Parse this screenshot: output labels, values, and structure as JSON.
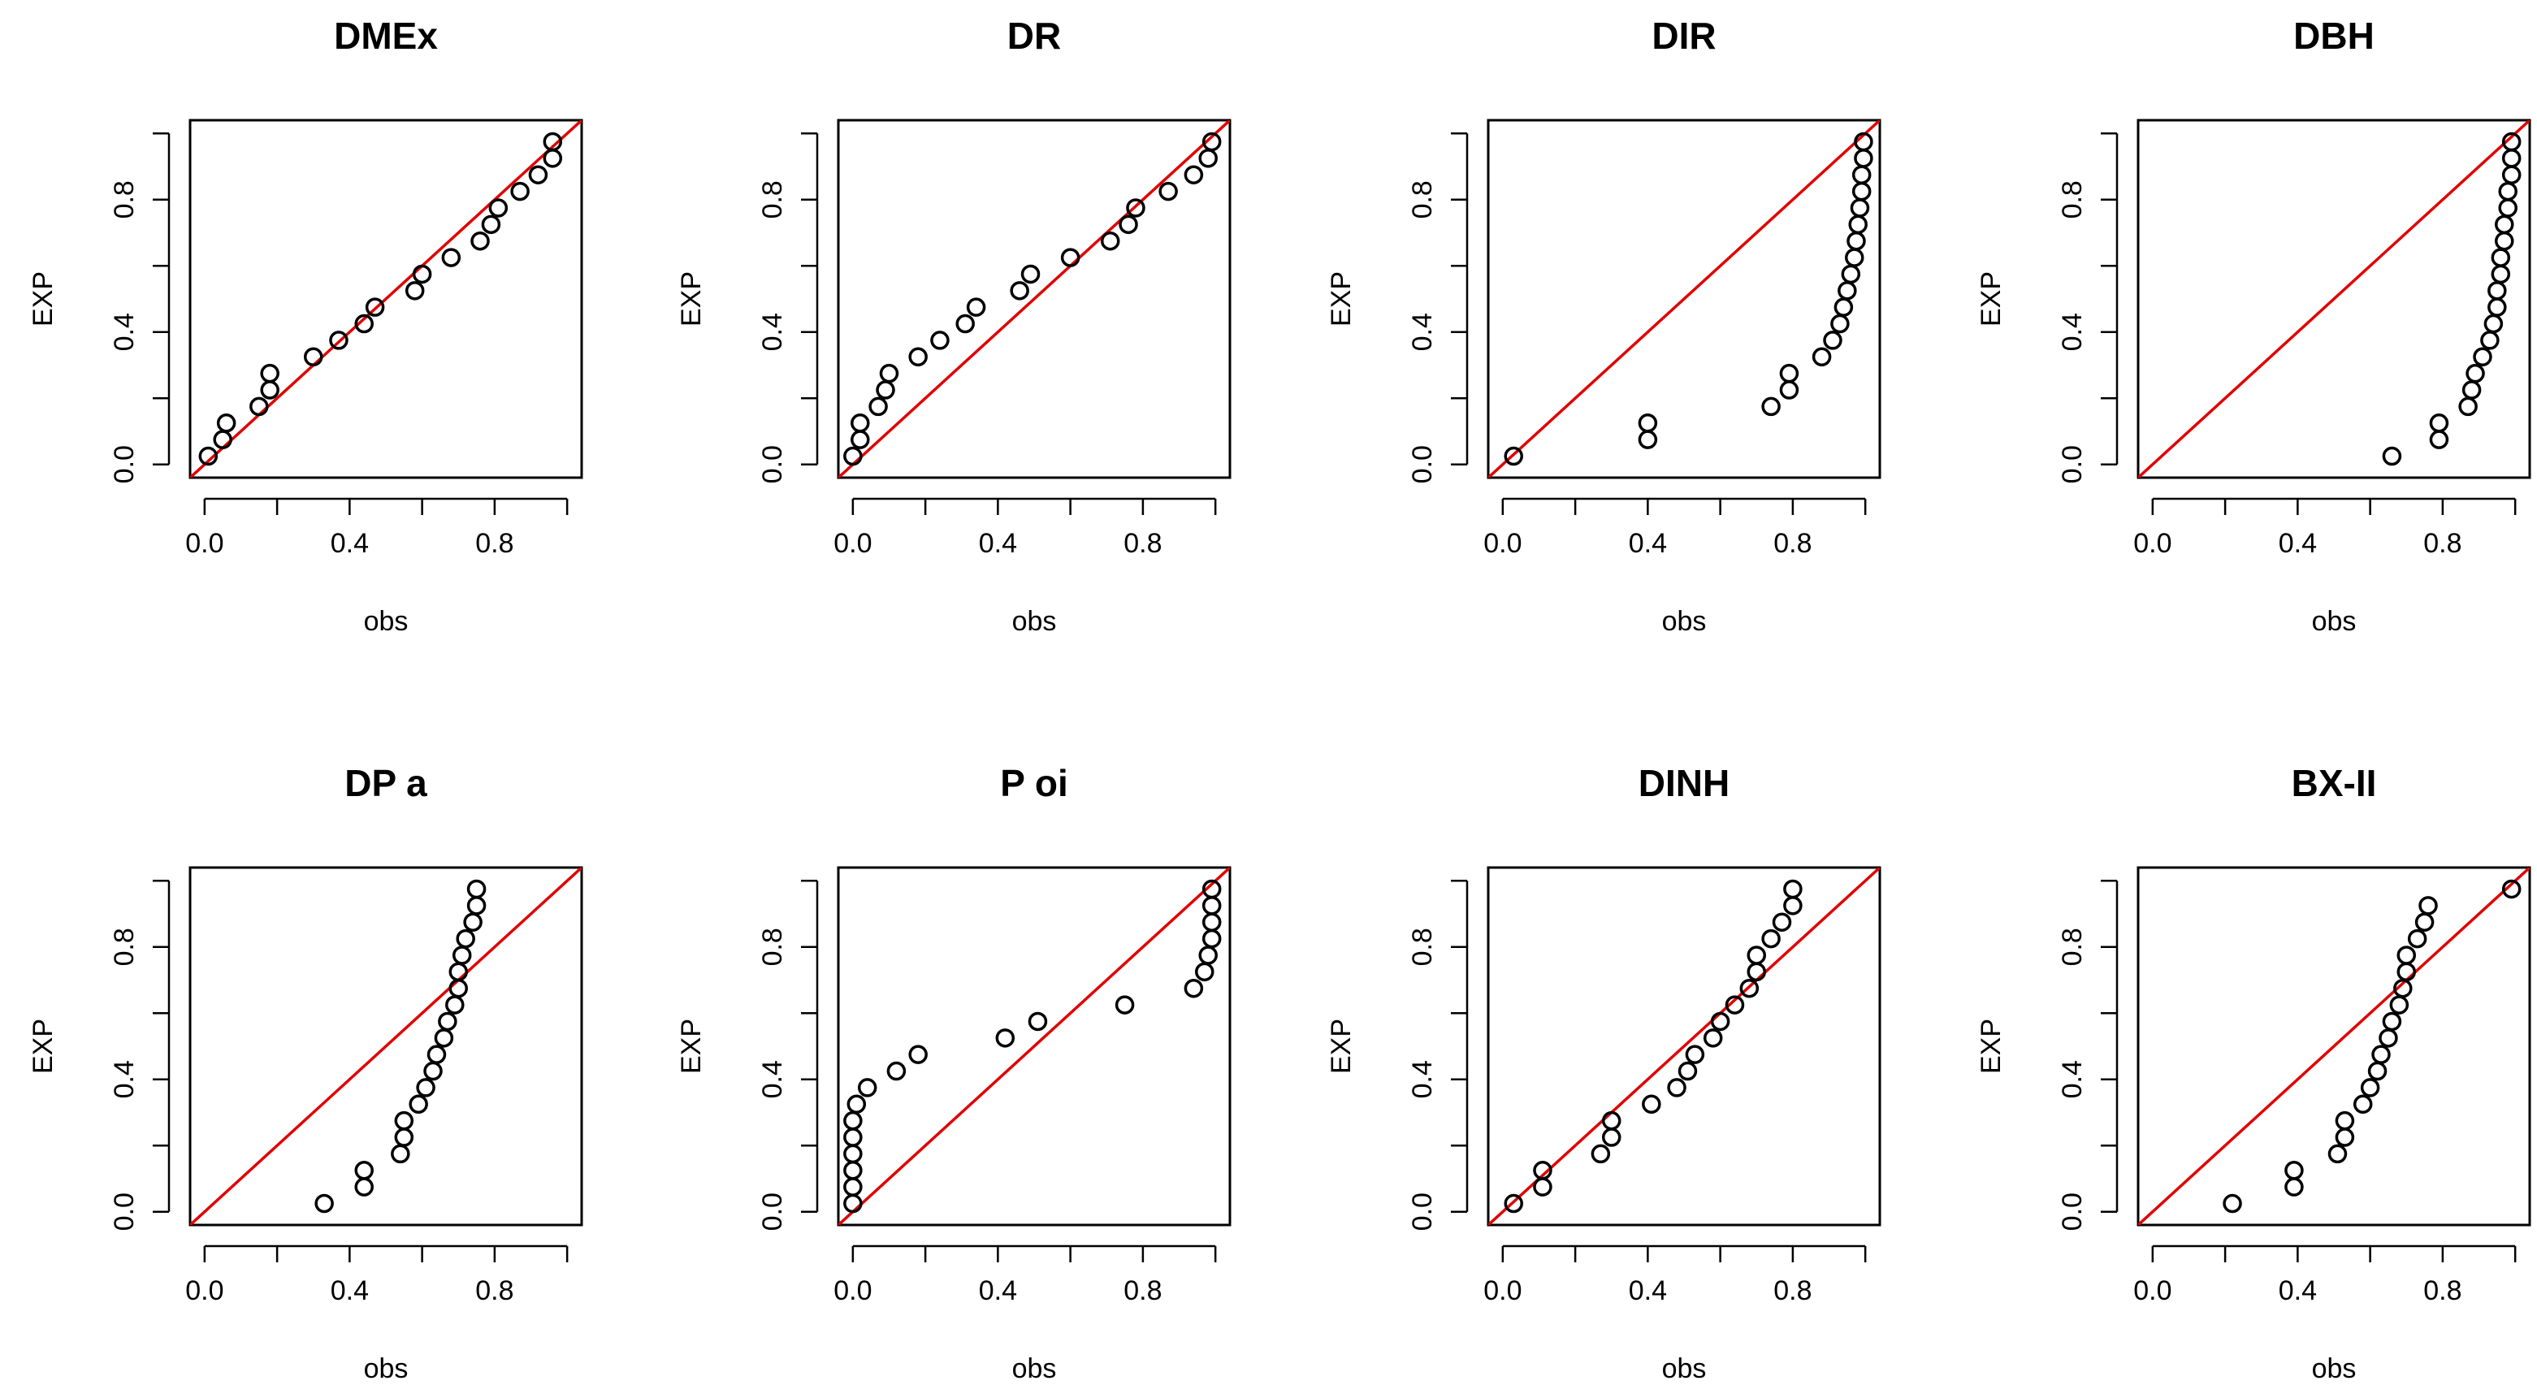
{
  "figure": {
    "background": "#ffffff"
  },
  "chart_data": [
    {
      "type": "scatter",
      "title": "DMEx",
      "xlabel": "obs",
      "ylabel": "EXP",
      "xlim": [
        0,
        1
      ],
      "ylim": [
        0,
        1
      ],
      "xticks": [
        "0.0",
        "0.4",
        "0.8"
      ],
      "yticks": [
        "0.0",
        "0.4",
        "0.8"
      ],
      "reference_line": {
        "slope": 1,
        "intercept": 0,
        "color": "#e00000"
      },
      "points": {
        "x": [
          0.01,
          0.05,
          0.06,
          0.15,
          0.18,
          0.18,
          0.3,
          0.37,
          0.44,
          0.47,
          0.58,
          0.6,
          0.68,
          0.76,
          0.79,
          0.81,
          0.87,
          0.92,
          0.96,
          0.96
        ],
        "y": [
          0.025,
          0.075,
          0.125,
          0.175,
          0.225,
          0.275,
          0.325,
          0.375,
          0.425,
          0.475,
          0.525,
          0.575,
          0.625,
          0.675,
          0.725,
          0.775,
          0.825,
          0.875,
          0.925,
          0.975
        ]
      }
    },
    {
      "type": "scatter",
      "title": "DR",
      "xlabel": "obs",
      "ylabel": "EXP",
      "xlim": [
        0,
        1
      ],
      "ylim": [
        0,
        1
      ],
      "xticks": [
        "0.0",
        "0.4",
        "0.8"
      ],
      "yticks": [
        "0.0",
        "0.4",
        "0.8"
      ],
      "reference_line": {
        "slope": 1,
        "intercept": 0,
        "color": "#e00000"
      },
      "points": {
        "x": [
          0.0,
          0.02,
          0.02,
          0.07,
          0.09,
          0.1,
          0.18,
          0.24,
          0.31,
          0.34,
          0.46,
          0.49,
          0.6,
          0.71,
          0.76,
          0.78,
          0.87,
          0.94,
          0.98,
          0.99
        ],
        "y": [
          0.025,
          0.075,
          0.125,
          0.175,
          0.225,
          0.275,
          0.325,
          0.375,
          0.425,
          0.475,
          0.525,
          0.575,
          0.625,
          0.675,
          0.725,
          0.775,
          0.825,
          0.875,
          0.925,
          0.975
        ]
      }
    },
    {
      "type": "scatter",
      "title": "DIR",
      "xlabel": "obs",
      "ylabel": "EXP",
      "xlim": [
        0,
        1
      ],
      "ylim": [
        0,
        1
      ],
      "xticks": [
        "0.0",
        "0.4",
        "0.8"
      ],
      "yticks": [
        "0.0",
        "0.4",
        "0.8"
      ],
      "reference_line": {
        "slope": 1,
        "intercept": 0,
        "color": "#e00000"
      },
      "points": {
        "x": [
          0.03,
          0.4,
          0.4,
          0.74,
          0.79,
          0.79,
          0.88,
          0.91,
          0.93,
          0.94,
          0.95,
          0.96,
          0.97,
          0.975,
          0.98,
          0.985,
          0.99,
          0.99,
          0.995,
          0.995
        ],
        "y": [
          0.025,
          0.075,
          0.125,
          0.175,
          0.225,
          0.275,
          0.325,
          0.375,
          0.425,
          0.475,
          0.525,
          0.575,
          0.625,
          0.675,
          0.725,
          0.775,
          0.825,
          0.875,
          0.925,
          0.975
        ]
      }
    },
    {
      "type": "scatter",
      "title": "DBH",
      "xlabel": "obs",
      "ylabel": "EXP",
      "xlim": [
        0,
        1
      ],
      "ylim": [
        0,
        1
      ],
      "xticks": [
        "0.0",
        "0.4",
        "0.8"
      ],
      "yticks": [
        "0.0",
        "0.4",
        "0.8"
      ],
      "reference_line": {
        "slope": 1,
        "intercept": 0,
        "color": "#e00000"
      },
      "points": {
        "x": [
          0.66,
          0.79,
          0.79,
          0.87,
          0.88,
          0.89,
          0.91,
          0.93,
          0.94,
          0.95,
          0.95,
          0.96,
          0.96,
          0.97,
          0.97,
          0.98,
          0.98,
          0.99,
          0.99,
          0.99
        ],
        "y": [
          0.025,
          0.075,
          0.125,
          0.175,
          0.225,
          0.275,
          0.325,
          0.375,
          0.425,
          0.475,
          0.525,
          0.575,
          0.625,
          0.675,
          0.725,
          0.775,
          0.825,
          0.875,
          0.925,
          0.975
        ]
      }
    },
    {
      "type": "scatter",
      "title": "DP  a",
      "xlabel": "obs",
      "ylabel": "EXP",
      "xlim": [
        0,
        1
      ],
      "ylim": [
        0,
        1
      ],
      "xticks": [
        "0.0",
        "0.4",
        "0.8"
      ],
      "yticks": [
        "0.0",
        "0.4",
        "0.8"
      ],
      "reference_line": {
        "slope": 1,
        "intercept": 0,
        "color": "#e00000"
      },
      "points": {
        "x": [
          0.33,
          0.44,
          0.44,
          0.54,
          0.55,
          0.55,
          0.59,
          0.61,
          0.63,
          0.64,
          0.66,
          0.67,
          0.69,
          0.7,
          0.7,
          0.71,
          0.72,
          0.74,
          0.75,
          0.75
        ],
        "y": [
          0.025,
          0.075,
          0.125,
          0.175,
          0.225,
          0.275,
          0.325,
          0.375,
          0.425,
          0.475,
          0.525,
          0.575,
          0.625,
          0.675,
          0.725,
          0.775,
          0.825,
          0.875,
          0.925,
          0.975
        ]
      }
    },
    {
      "type": "scatter",
      "title": "P oi",
      "xlabel": "obs",
      "ylabel": "EXP",
      "xlim": [
        0,
        1
      ],
      "ylim": [
        0,
        1
      ],
      "xticks": [
        "0.0",
        "0.4",
        "0.8"
      ],
      "yticks": [
        "0.0",
        "0.4",
        "0.8"
      ],
      "reference_line": {
        "slope": 1,
        "intercept": 0,
        "color": "#e00000"
      },
      "points": {
        "x": [
          0.0,
          0.0,
          0.0,
          0.0,
          0.0,
          0.0,
          0.01,
          0.04,
          0.12,
          0.18,
          0.42,
          0.51,
          0.75,
          0.94,
          0.97,
          0.98,
          0.99,
          0.99,
          0.99,
          0.99
        ],
        "y": [
          0.025,
          0.075,
          0.125,
          0.175,
          0.225,
          0.275,
          0.325,
          0.375,
          0.425,
          0.475,
          0.525,
          0.575,
          0.625,
          0.675,
          0.725,
          0.775,
          0.825,
          0.875,
          0.925,
          0.975
        ]
      }
    },
    {
      "type": "scatter",
      "title": "DINH",
      "xlabel": "obs",
      "ylabel": "EXP",
      "xlim": [
        0,
        1
      ],
      "ylim": [
        0,
        1
      ],
      "xticks": [
        "0.0",
        "0.4",
        "0.8"
      ],
      "yticks": [
        "0.0",
        "0.4",
        "0.8"
      ],
      "reference_line": {
        "slope": 1,
        "intercept": 0,
        "color": "#e00000"
      },
      "points": {
        "x": [
          0.03,
          0.11,
          0.11,
          0.27,
          0.3,
          0.3,
          0.41,
          0.48,
          0.51,
          0.53,
          0.58,
          0.6,
          0.64,
          0.68,
          0.7,
          0.7,
          0.74,
          0.77,
          0.8,
          0.8
        ],
        "y": [
          0.025,
          0.075,
          0.125,
          0.175,
          0.225,
          0.275,
          0.325,
          0.375,
          0.425,
          0.475,
          0.525,
          0.575,
          0.625,
          0.675,
          0.725,
          0.775,
          0.825,
          0.875,
          0.925,
          0.975
        ]
      }
    },
    {
      "type": "scatter",
      "title": "BX-II",
      "xlabel": "obs",
      "ylabel": "EXP",
      "xlim": [
        0,
        1
      ],
      "ylim": [
        0,
        1
      ],
      "xticks": [
        "0.0",
        "0.4",
        "0.8"
      ],
      "yticks": [
        "0.0",
        "0.4",
        "0.8"
      ],
      "reference_line": {
        "slope": 1,
        "intercept": 0,
        "color": "#e00000"
      },
      "points": {
        "x": [
          0.22,
          0.39,
          0.39,
          0.51,
          0.53,
          0.53,
          0.58,
          0.6,
          0.62,
          0.63,
          0.65,
          0.66,
          0.68,
          0.69,
          0.7,
          0.7,
          0.73,
          0.75,
          0.76,
          0.99
        ],
        "y": [
          0.025,
          0.075,
          0.125,
          0.175,
          0.225,
          0.275,
          0.325,
          0.375,
          0.425,
          0.475,
          0.525,
          0.575,
          0.625,
          0.675,
          0.725,
          0.775,
          0.825,
          0.875,
          0.925,
          0.975
        ]
      }
    }
  ]
}
